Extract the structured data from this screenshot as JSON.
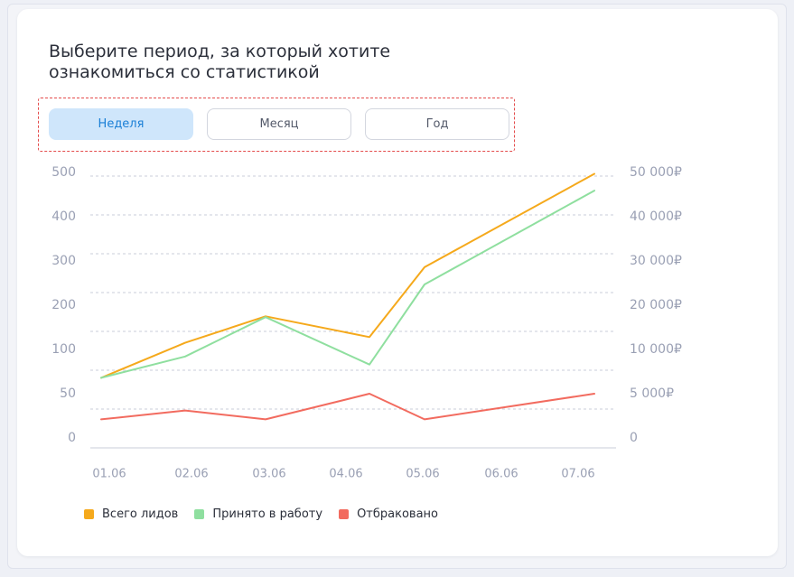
{
  "header": {
    "title_line1": "Выберите период, за который хотите",
    "title_line2": "ознакомиться со статистикой"
  },
  "period_buttons": [
    {
      "label": "Неделя",
      "active": true
    },
    {
      "label": "Месяц",
      "active": false
    },
    {
      "label": "Год",
      "active": false
    }
  ],
  "colors": {
    "total": "#f5a91c",
    "accepted": "#8fdf9f",
    "rejected": "#f26b5f",
    "active_button_bg": "#cfe6fb",
    "active_button_text": "#1a7fd6",
    "selection_outline": "#e44c4c"
  },
  "chart_data": {
    "type": "line",
    "categories": [
      "01.06",
      "02.06",
      "03.06",
      "04.06",
      "05.06",
      "06.06",
      "07.06"
    ],
    "x": [
      0.5,
      1.5,
      2.5,
      3.5,
      4.5,
      5.5,
      6.5
    ],
    "x_labels": [
      "01.06",
      "02.06",
      "03.06",
      "04.06",
      "05.06",
      "06.06",
      "07.06"
    ],
    "y_left_ticks": [
      0,
      50,
      100,
      200,
      300,
      400,
      500
    ],
    "y_left_tick_labels": [
      "0",
      "50",
      "100",
      "200",
      "300",
      "400",
      "500"
    ],
    "y_right_tick_labels": [
      "0",
      "5 000₽",
      "10 000₽",
      "20 000₽",
      "30 000₽",
      "40 000₽",
      "50 000₽"
    ],
    "y_scale_note": "left axis ticks are not evenly spaced in value; right axis mirrors left in rubles",
    "grid": "horizontal dashed",
    "series": [
      {
        "name": "Всего лидов",
        "color": "#f5a91c",
        "points": [
          [
            0,
            68
          ],
          [
            1,
            115
          ],
          [
            2,
            175
          ],
          [
            3.25,
            128
          ],
          [
            4,
            286
          ],
          [
            6.85,
            497
          ]
        ]
      },
      {
        "name": "Принято в работу",
        "color": "#8fdf9f",
        "points": [
          [
            0,
            68
          ],
          [
            1,
            92
          ],
          [
            2,
            173
          ],
          [
            3.25,
            83
          ],
          [
            4,
            247
          ],
          [
            6.85,
            459
          ]
        ]
      },
      {
        "name": "Отбраковано",
        "color": "#f26b5f",
        "points": [
          [
            0,
            21
          ],
          [
            1,
            31
          ],
          [
            2,
            21
          ],
          [
            3.25,
            50
          ],
          [
            4,
            21
          ],
          [
            6.85,
            50
          ]
        ]
      }
    ]
  }
}
